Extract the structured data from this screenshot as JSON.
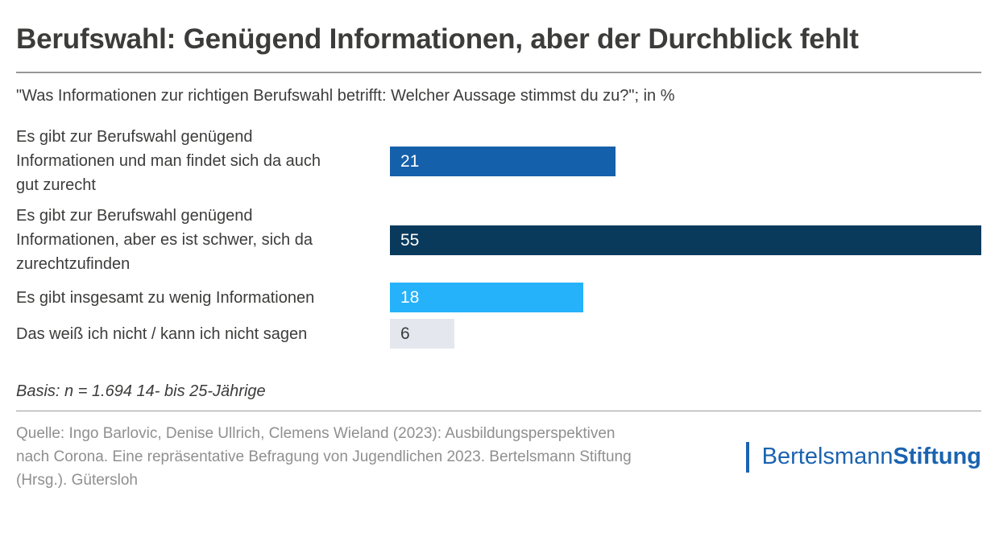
{
  "header": {
    "title": "Berufswahl: Genügend Informationen, aber der Durchblick fehlt",
    "subtitle": "\"Was Informationen zur richtigen Berufswahl betrifft: Welcher Aussage stimmst du zu?\"; in %"
  },
  "chart_data": {
    "type": "bar",
    "orientation": "horizontal",
    "unit": "%",
    "xlim": [
      0,
      55
    ],
    "categories": [
      "Es gibt zur Berufswahl genügend Informationen und man findet sich da auch gut zurecht",
      "Es gibt zur Berufswahl genügend Informationen, aber es ist schwer, sich da zurechtzufinden",
      "Es gibt insgesamt zu wenig Informationen",
      "Das weiß ich nicht / kann ich nicht sagen"
    ],
    "label_lines": [
      [
        "Es gibt zur Berufswahl genügend",
        "Informationen und man findet sich da auch",
        "gut zurecht"
      ],
      [
        "Es gibt zur Berufswahl genügend",
        "Informationen, aber es ist schwer, sich da",
        "zurechtzufinden"
      ],
      [
        "Es gibt insgesamt zu wenig Informationen"
      ],
      [
        "Das weiß ich nicht / kann ich nicht sagen"
      ]
    ],
    "values": [
      21,
      55,
      18,
      6
    ],
    "bar_colors": [
      "#1560ab",
      "#093a5c",
      "#25b2fa",
      "#e4e8ee"
    ],
    "value_label_colors": [
      "#ffffff",
      "#ffffff",
      "#ffffff",
      "#3c3c3b"
    ],
    "grid": false,
    "legend": false
  },
  "basis_note": "Basis: n = 1.694 14- bis 25-Jährige",
  "footer": {
    "source_lines": [
      "Quelle: Ingo Barlovic, Denise Ullrich, Clemens Wieland (2023): Ausbildungsperspektiven",
      "nach Corona. Eine repräsentative Befragung von Jugendlichen 2023. Bertelsmann Stiftung",
      "(Hrsg.). Gütersloh"
    ],
    "logo": {
      "text_regular": "Bertelsmann",
      "text_bold": "Stiftung",
      "color": "#1b63b0"
    }
  }
}
